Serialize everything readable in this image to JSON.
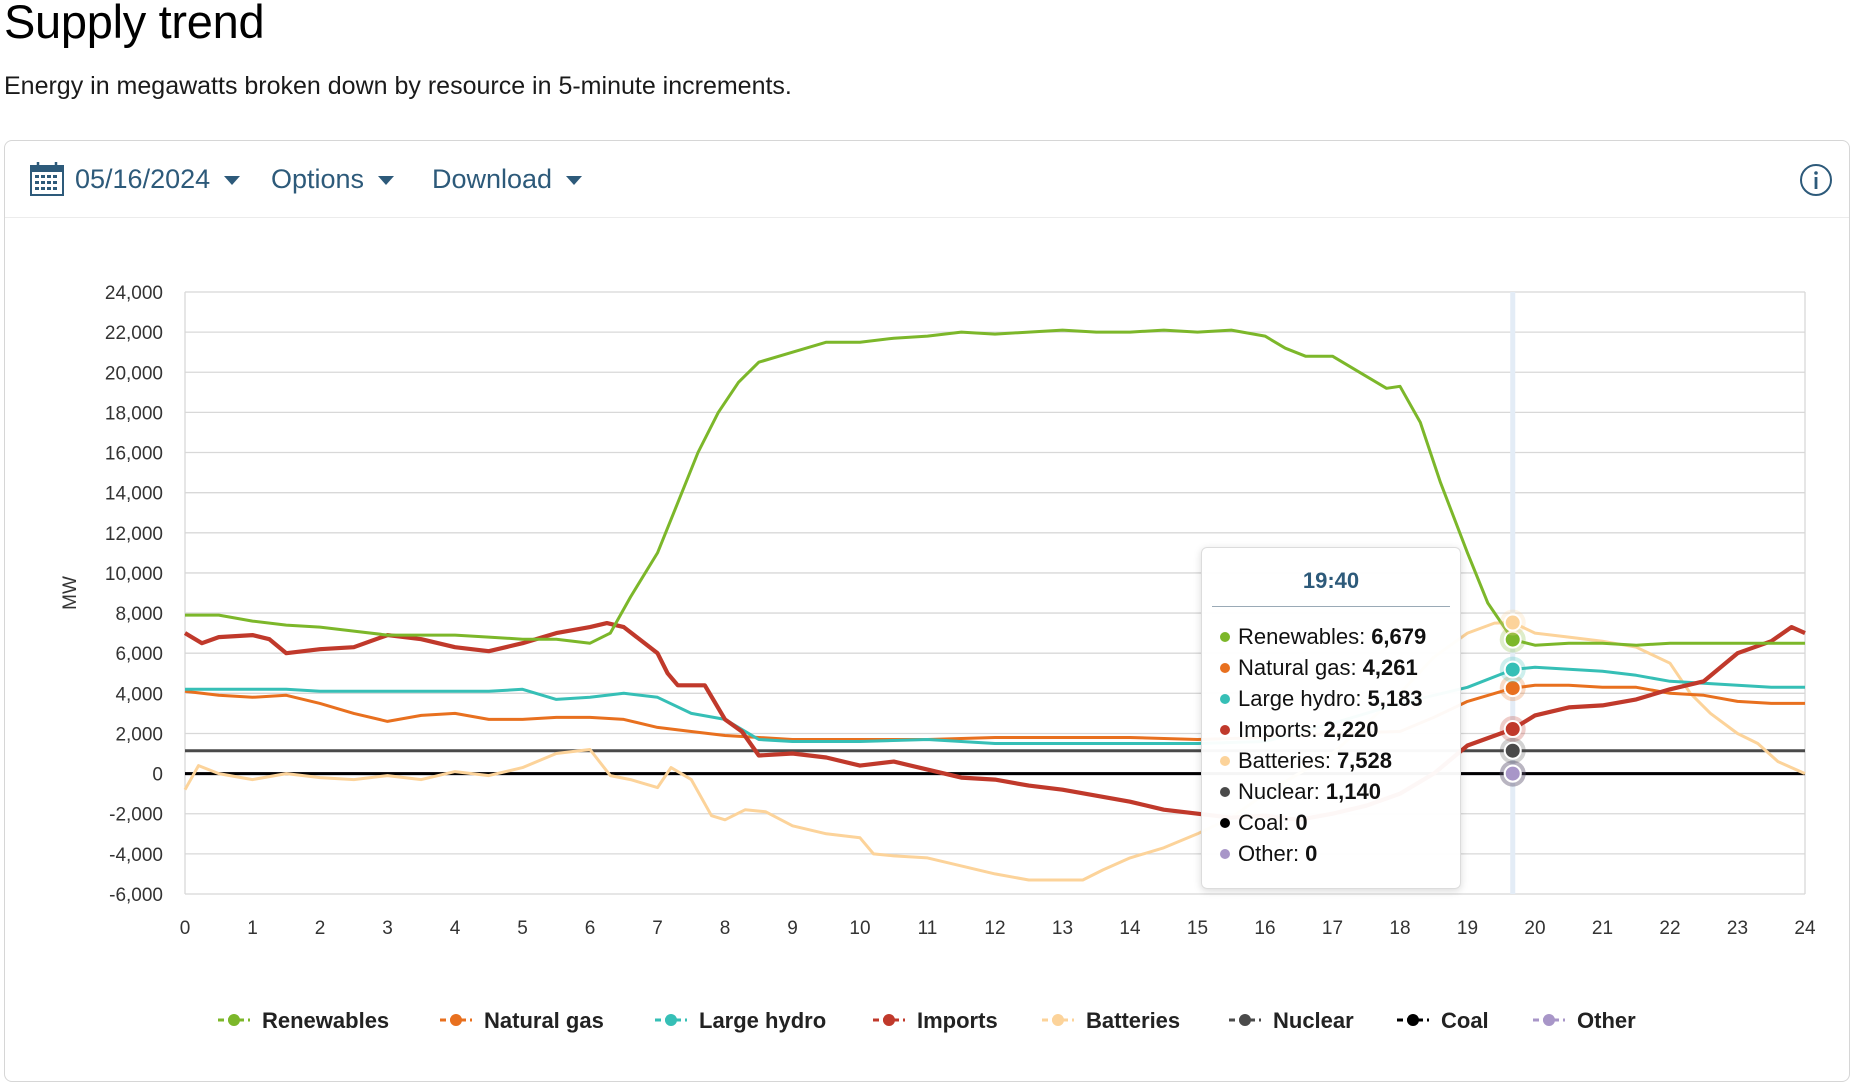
{
  "page": {
    "title": "Supply trend",
    "subtitle": "Energy in megawatts broken down by resource in 5-minute increments."
  },
  "toolbar": {
    "date": "05/16/2024",
    "options_label": "Options",
    "download_label": "Download"
  },
  "tooltip": {
    "time": "19:40",
    "rows": [
      {
        "name": "Renewables",
        "value": "6,679",
        "color": "#7cb72a"
      },
      {
        "name": "Natural gas",
        "value": "4,261",
        "color": "#e8701f"
      },
      {
        "name": "Large hydro",
        "value": "5,183",
        "color": "#36bfb6"
      },
      {
        "name": "Imports",
        "value": "2,220",
        "color": "#c0392b"
      },
      {
        "name": "Batteries",
        "value": "7,528",
        "color": "#fcd39a"
      },
      {
        "name": "Nuclear",
        "value": "1,140",
        "color": "#4a4a4a"
      },
      {
        "name": "Coal",
        "value": "0",
        "color": "#000000"
      },
      {
        "name": "Other",
        "value": "0",
        "color": "#a896c8"
      }
    ]
  },
  "chart_data": {
    "type": "line",
    "ylabel": "MW",
    "xlim": [
      0,
      24
    ],
    "ylim": [
      -6000,
      24000
    ],
    "x_ticks": [
      0,
      1,
      2,
      3,
      4,
      5,
      6,
      7,
      8,
      9,
      10,
      11,
      12,
      13,
      14,
      15,
      16,
      17,
      18,
      19,
      20,
      21,
      22,
      23,
      24
    ],
    "y_ticks": [
      24000,
      22000,
      20000,
      18000,
      16000,
      14000,
      12000,
      10000,
      8000,
      6000,
      4000,
      2000,
      0,
      -2000,
      -4000,
      -6000
    ],
    "y_tick_labels": [
      "24,000",
      "22,000",
      "20,000",
      "18,000",
      "16,000",
      "14,000",
      "12,000",
      "10,000",
      "8,000",
      "6,000",
      "4,000",
      "2,000",
      "0",
      "-2,000",
      "-4,000",
      "-6,000"
    ],
    "grid": true,
    "legend_position": "bottom",
    "hover_x": 19.67,
    "series": [
      {
        "name": "Renewables",
        "color": "#7cb72a",
        "x": [
          0,
          0.5,
          1,
          1.5,
          2,
          2.5,
          3,
          3.5,
          4,
          4.5,
          5,
          5.5,
          6,
          6.3,
          6.6,
          7,
          7.3,
          7.6,
          7.9,
          8.2,
          8.5,
          9,
          9.5,
          10,
          10.5,
          11,
          11.5,
          12,
          12.5,
          13,
          13.5,
          14,
          14.5,
          15,
          15.5,
          16,
          16.3,
          16.6,
          17,
          17.5,
          17.8,
          18,
          18.3,
          18.6,
          19,
          19.3,
          19.67,
          20,
          20.5,
          21,
          21.5,
          22,
          22.5,
          23,
          23.5,
          24
        ],
        "y": [
          7900,
          7900,
          7600,
          7400,
          7300,
          7100,
          6900,
          6900,
          6900,
          6800,
          6700,
          6700,
          6500,
          7000,
          8800,
          11000,
          13500,
          16000,
          18000,
          19500,
          20500,
          21000,
          21500,
          21500,
          21700,
          21800,
          22000,
          21900,
          22000,
          22100,
          22000,
          22000,
          22100,
          22000,
          22100,
          21800,
          21200,
          20800,
          20800,
          19800,
          19200,
          19300,
          17500,
          14500,
          11000,
          8500,
          6679,
          6400,
          6500,
          6500,
          6400,
          6500,
          6500,
          6500,
          6500,
          6500
        ]
      },
      {
        "name": "Natural gas",
        "color": "#e8701f",
        "x": [
          0,
          0.5,
          1,
          1.5,
          2,
          2.5,
          3,
          3.5,
          4,
          4.5,
          5,
          5.5,
          6,
          6.5,
          7,
          7.5,
          8,
          8.5,
          9,
          10,
          11,
          12,
          13,
          14,
          15,
          16,
          17,
          18,
          18.5,
          19,
          19.67,
          20,
          20.5,
          21,
          21.5,
          22,
          22.5,
          23,
          23.5,
          24
        ],
        "y": [
          4100,
          3900,
          3800,
          3900,
          3500,
          3000,
          2600,
          2900,
          3000,
          2700,
          2700,
          2800,
          2800,
          2700,
          2300,
          2100,
          1900,
          1800,
          1700,
          1700,
          1700,
          1800,
          1800,
          1800,
          1700,
          1800,
          2000,
          2100,
          2800,
          3600,
          4261,
          4400,
          4400,
          4300,
          4300,
          4000,
          3900,
          3600,
          3500,
          3500
        ]
      },
      {
        "name": "Large hydro",
        "color": "#36bfb6",
        "x": [
          0,
          0.5,
          1,
          1.5,
          2,
          2.5,
          3,
          3.5,
          4,
          4.5,
          5,
          5.5,
          6,
          6.5,
          7,
          7.5,
          8,
          8.5,
          9,
          10,
          11,
          12,
          13,
          14,
          15,
          16,
          17,
          18,
          19,
          19.67,
          20,
          20.5,
          21,
          21.5,
          22,
          22.5,
          23,
          23.5,
          24
        ],
        "y": [
          4200,
          4200,
          4200,
          4200,
          4100,
          4100,
          4100,
          4100,
          4100,
          4100,
          4200,
          3700,
          3800,
          4000,
          3800,
          3000,
          2700,
          1700,
          1600,
          1600,
          1700,
          1500,
          1500,
          1500,
          1500,
          1600,
          2500,
          3500,
          4300,
          5183,
          5300,
          5200,
          5100,
          4900,
          4600,
          4500,
          4400,
          4300,
          4300
        ]
      },
      {
        "name": "Imports",
        "color": "#c0392b",
        "x": [
          0,
          0.25,
          0.5,
          1,
          1.25,
          1.5,
          2,
          2.5,
          3,
          3.5,
          4,
          4.5,
          5,
          5.5,
          6,
          6.25,
          6.5,
          7,
          7.15,
          7.3,
          7.5,
          7.7,
          8,
          8.25,
          8.5,
          9,
          9.5,
          10,
          10.5,
          11,
          11.5,
          12,
          12.5,
          13,
          13.5,
          14,
          14.5,
          15,
          15.5,
          16,
          16.5,
          17,
          17.5,
          18,
          18.5,
          19,
          19.67,
          20,
          20.5,
          21,
          21.5,
          22,
          22.5,
          23,
          23.5,
          23.8,
          24
        ],
        "y": [
          7000,
          6500,
          6800,
          6900,
          6700,
          6000,
          6200,
          6300,
          6900,
          6700,
          6300,
          6100,
          6500,
          7000,
          7300,
          7500,
          7300,
          6000,
          5000,
          4400,
          4400,
          4400,
          2700,
          2100,
          900,
          1000,
          800,
          400,
          600,
          200,
          -200,
          -300,
          -600,
          -800,
          -1100,
          -1400,
          -1800,
          -2000,
          -2200,
          -2100,
          -2300,
          -2000,
          -1600,
          -1000,
          0,
          1400,
          2220,
          2900,
          3300,
          3400,
          3700,
          4200,
          4600,
          6000,
          6600,
          7300,
          7000
        ]
      },
      {
        "name": "Batteries",
        "color": "#fcd39a",
        "x": [
          0,
          0.2,
          0.5,
          1,
          1.5,
          2,
          2.5,
          3,
          3.5,
          4,
          4.5,
          5,
          5.5,
          6,
          6.3,
          6.6,
          7,
          7.2,
          7.5,
          7.8,
          8,
          8.3,
          8.6,
          9,
          9.5,
          10,
          10.2,
          10.5,
          11,
          11.5,
          12,
          12.5,
          13,
          13.3,
          13.6,
          14,
          14.5,
          15,
          15.5,
          16,
          16.5,
          17,
          17.5,
          18,
          18.5,
          19,
          19.4,
          19.67,
          20,
          20.5,
          21,
          21.5,
          22,
          22.3,
          22.6,
          23,
          23.3,
          23.6,
          24
        ],
        "y": [
          -800,
          400,
          0,
          -300,
          0,
          -200,
          -300,
          -100,
          -300,
          100,
          -100,
          300,
          1000,
          1200,
          -100,
          -300,
          -700,
          300,
          -300,
          -2100,
          -2300,
          -1800,
          -1900,
          -2600,
          -3000,
          -3200,
          -4000,
          -4100,
          -4200,
          -4600,
          -5000,
          -5300,
          -5300,
          -5300,
          -4800,
          -4200,
          -3700,
          -3000,
          -2200,
          -1000,
          0,
          1000,
          2500,
          4000,
          5800,
          7000,
          7500,
          7528,
          7000,
          6800,
          6600,
          6300,
          5500,
          4000,
          3000,
          2000,
          1500,
          600,
          0
        ]
      },
      {
        "name": "Nuclear",
        "color": "#4a4a4a",
        "x": [
          0,
          24
        ],
        "y": [
          1140,
          1140
        ]
      },
      {
        "name": "Coal",
        "color": "#000000",
        "x": [
          0,
          24
        ],
        "y": [
          0,
          0
        ]
      },
      {
        "name": "Other",
        "color": "#a896c8",
        "x": [
          0,
          24
        ],
        "y": [
          0,
          0
        ]
      }
    ]
  }
}
